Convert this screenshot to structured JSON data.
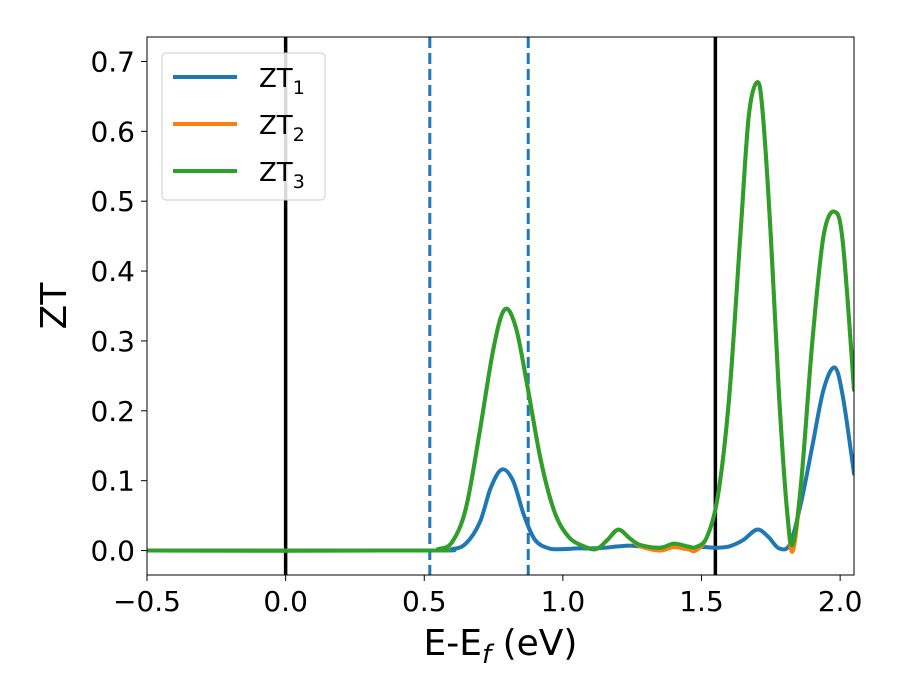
{
  "chart_data": {
    "type": "line",
    "xlabel_main": "E-E",
    "xlabel_sub": "f",
    "xlabel_unit": " (eV)",
    "ylabel": "ZT",
    "xlim": [
      -0.5,
      2.05
    ],
    "ylim": [
      -0.035,
      0.735
    ],
    "xticks": [
      -0.5,
      0.0,
      0.5,
      1.0,
      1.5,
      2.0
    ],
    "xtick_labels": [
      "−0.5",
      "0.0",
      "0.5",
      "1.0",
      "1.5",
      "2.0"
    ],
    "yticks": [
      0.0,
      0.1,
      0.2,
      0.3,
      0.4,
      0.5,
      0.6,
      0.7
    ],
    "ytick_labels": [
      "0.0",
      "0.1",
      "0.2",
      "0.3",
      "0.4",
      "0.5",
      "0.6",
      "0.7"
    ],
    "legend_position": "top-left",
    "vlines": [
      {
        "x": 0.0,
        "style": "solid",
        "color": "#000000"
      },
      {
        "x": 0.52,
        "style": "dashed",
        "color": "#1f77b4"
      },
      {
        "x": 0.875,
        "style": "dashed",
        "color": "#1f77b4"
      },
      {
        "x": 1.55,
        "style": "solid",
        "color": "#000000"
      }
    ],
    "series": [
      {
        "name": "ZT",
        "sub": "1",
        "color": "#1f77b4",
        "x": [
          -0.5,
          0.5,
          0.6,
          0.65,
          0.7,
          0.74,
          0.78,
          0.82,
          0.86,
          0.9,
          0.95,
          1.0,
          1.05,
          1.1,
          1.15,
          1.2,
          1.25,
          1.3,
          1.35,
          1.4,
          1.45,
          1.5,
          1.55,
          1.6,
          1.65,
          1.7,
          1.74,
          1.78,
          1.82,
          1.86,
          1.9,
          1.94,
          1.98,
          2.01,
          2.05
        ],
        "y": [
          0.0,
          0.0,
          0.002,
          0.01,
          0.04,
          0.09,
          0.116,
          0.1,
          0.05,
          0.015,
          0.003,
          0.002,
          0.003,
          0.003,
          0.004,
          0.006,
          0.007,
          0.005,
          0.004,
          0.006,
          0.002,
          0.005,
          0.004,
          0.006,
          0.015,
          0.03,
          0.02,
          0.003,
          0.01,
          0.07,
          0.15,
          0.23,
          0.262,
          0.22,
          0.11
        ]
      },
      {
        "name": "ZT",
        "sub": "2",
        "color": "#ff7f0e",
        "x": [
          -0.5,
          0.5,
          0.55,
          0.6,
          0.65,
          0.7,
          0.75,
          0.79,
          0.83,
          0.87,
          0.92,
          0.97,
          1.02,
          1.07,
          1.12,
          1.16,
          1.2,
          1.24,
          1.28,
          1.35,
          1.4,
          1.45,
          1.48,
          1.52,
          1.56,
          1.6,
          1.64,
          1.67,
          1.7,
          1.72,
          1.75,
          1.78,
          1.81,
          1.83,
          1.86,
          1.9,
          1.94,
          1.98,
          2.01,
          2.05
        ],
        "y": [
          0.0,
          0.0,
          0.002,
          0.012,
          0.06,
          0.17,
          0.29,
          0.345,
          0.32,
          0.24,
          0.13,
          0.055,
          0.02,
          0.007,
          0.002,
          0.015,
          0.03,
          0.018,
          0.006,
          0.0,
          0.005,
          0.002,
          0.0,
          0.02,
          0.08,
          0.22,
          0.45,
          0.62,
          0.67,
          0.63,
          0.45,
          0.22,
          0.05,
          0.0,
          0.1,
          0.3,
          0.45,
          0.485,
          0.44,
          0.23
        ]
      },
      {
        "name": "ZT",
        "sub": "3",
        "color": "#2ca02c",
        "x": [
          -0.5,
          0.5,
          0.55,
          0.6,
          0.65,
          0.7,
          0.75,
          0.79,
          0.83,
          0.87,
          0.92,
          0.97,
          1.02,
          1.07,
          1.12,
          1.16,
          1.2,
          1.24,
          1.28,
          1.35,
          1.4,
          1.45,
          1.48,
          1.52,
          1.56,
          1.6,
          1.64,
          1.67,
          1.7,
          1.72,
          1.75,
          1.78,
          1.81,
          1.83,
          1.86,
          1.9,
          1.94,
          1.98,
          2.01,
          2.05
        ],
        "y": [
          0.0,
          0.0,
          0.002,
          0.012,
          0.06,
          0.17,
          0.29,
          0.345,
          0.32,
          0.24,
          0.13,
          0.055,
          0.02,
          0.007,
          0.002,
          0.015,
          0.03,
          0.018,
          0.008,
          0.004,
          0.01,
          0.006,
          0.005,
          0.02,
          0.08,
          0.22,
          0.45,
          0.62,
          0.67,
          0.63,
          0.45,
          0.22,
          0.05,
          0.01,
          0.1,
          0.3,
          0.45,
          0.485,
          0.44,
          0.23
        ]
      }
    ]
  }
}
